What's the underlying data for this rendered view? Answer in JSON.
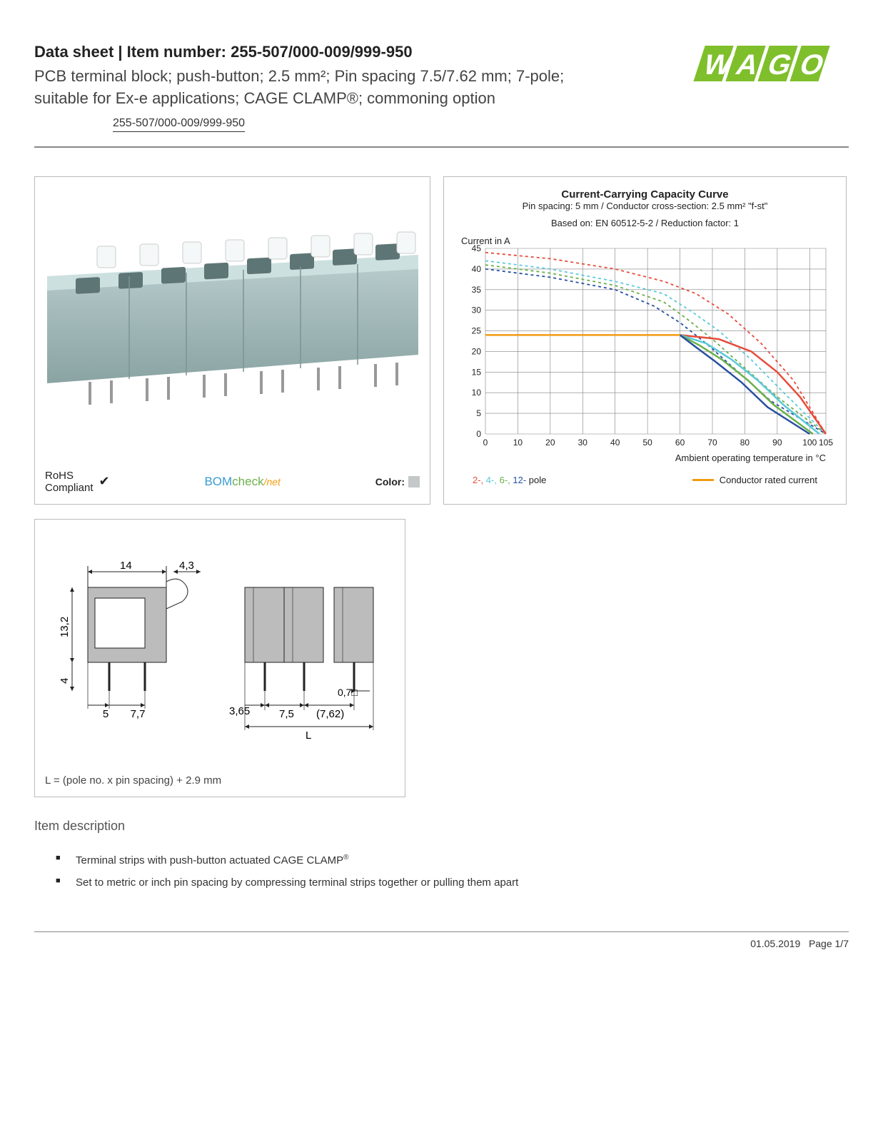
{
  "header": {
    "title_prefix": "Data sheet  |  Item number: ",
    "item_number": "255-507/000-009/999-950",
    "subtitle": "PCB terminal block; push-button; 2.5 mm²; Pin spacing 7.5/7.62 mm; 7-pole; suitable for Ex-e applications; CAGE CLAMP®; commoning option",
    "item_link": "255-507/000-009/999-950",
    "logo_text": "WAGO",
    "logo_color": "#7fbf2b"
  },
  "product_panel": {
    "rohs_line1": "RoHS",
    "rohs_line2": "Compliant",
    "bomcheck_text": "BOMcheck",
    "bomcheck_suffix": "/net",
    "color_label": "Color:",
    "swatch_color": "#c4c8c8",
    "terminal_body_color": "#a3b8b8",
    "terminal_shadow_color": "#7d9494"
  },
  "chart": {
    "title": "Current-Carrying Capacity Curve",
    "sub1": "Pin spacing: 5 mm / Conductor cross-section: 2.5 mm² \"f-st\"",
    "sub2": "Based on: EN 60512-5-2 / Reduction factor: 1",
    "y_axis_label": "Current in A",
    "x_axis_label": "Ambient operating temperature in °C",
    "ylim": [
      0,
      45
    ],
    "ytick_step": 5,
    "xlim": [
      0,
      105
    ],
    "xticks": [
      10,
      20,
      30,
      40,
      50,
      60,
      70,
      80,
      90,
      100,
      105
    ],
    "grid_color": "#808080",
    "background_color": "#ffffff",
    "series": [
      {
        "name": "2-pole",
        "color": "#e74c3c",
        "dashed": true,
        "points": [
          [
            0,
            44
          ],
          [
            20,
            42.5
          ],
          [
            40,
            40
          ],
          [
            55,
            37
          ],
          [
            65,
            34
          ],
          [
            75,
            29
          ],
          [
            85,
            22
          ],
          [
            95,
            13
          ],
          [
            105,
            0
          ]
        ]
      },
      {
        "name": "4-pole",
        "color": "#5bc9d9",
        "dashed": true,
        "points": [
          [
            0,
            42
          ],
          [
            20,
            40
          ],
          [
            40,
            37
          ],
          [
            55,
            34
          ],
          [
            63,
            30
          ],
          [
            72,
            25
          ],
          [
            82,
            18
          ],
          [
            92,
            10
          ],
          [
            105,
            0
          ]
        ]
      },
      {
        "name": "6-pole",
        "color": "#6ab04a",
        "dashed": true,
        "points": [
          [
            0,
            41
          ],
          [
            20,
            39
          ],
          [
            40,
            36
          ],
          [
            55,
            32
          ],
          [
            62,
            28
          ],
          [
            70,
            23
          ],
          [
            80,
            16
          ],
          [
            90,
            9
          ],
          [
            105,
            0
          ]
        ]
      },
      {
        "name": "12-pole",
        "color": "#2850a0",
        "dashed": true,
        "points": [
          [
            0,
            40
          ],
          [
            20,
            38
          ],
          [
            40,
            35
          ],
          [
            52,
            31
          ],
          [
            60,
            27
          ],
          [
            68,
            22
          ],
          [
            78,
            15
          ],
          [
            88,
            8
          ],
          [
            105,
            0
          ]
        ]
      },
      {
        "name": "2-solid",
        "color": "#e74c3c",
        "dashed": false,
        "points": [
          [
            60,
            24
          ],
          [
            72,
            23
          ],
          [
            82,
            20
          ],
          [
            90,
            15
          ],
          [
            97,
            9
          ],
          [
            105,
            0
          ]
        ]
      },
      {
        "name": "4-solid",
        "color": "#5bc9d9",
        "dashed": false,
        "points": [
          [
            60,
            24
          ],
          [
            68,
            22
          ],
          [
            76,
            18
          ],
          [
            84,
            13
          ],
          [
            92,
            7
          ],
          [
            103,
            0
          ]
        ]
      },
      {
        "name": "6-solid",
        "color": "#6ab04a",
        "dashed": false,
        "points": [
          [
            60,
            24
          ],
          [
            66,
            21.5
          ],
          [
            73,
            18
          ],
          [
            81,
            13
          ],
          [
            89,
            7
          ],
          [
            101,
            0
          ]
        ]
      },
      {
        "name": "12-solid",
        "color": "#2850a0",
        "dashed": false,
        "points": [
          [
            60,
            24
          ],
          [
            65,
            21
          ],
          [
            71,
            17.5
          ],
          [
            79,
            12.5
          ],
          [
            87,
            6.5
          ],
          [
            100,
            0
          ]
        ]
      },
      {
        "name": "rated",
        "color": "#f39c12",
        "dashed": false,
        "points": [
          [
            0,
            24
          ],
          [
            60,
            24
          ]
        ]
      }
    ],
    "legend_poles": [
      {
        "text": "2-",
        "color": "#e74c3c"
      },
      {
        "text": "4-",
        "color": "#5bc9d9"
      },
      {
        "text": "6-",
        "color": "#6ab04a"
      },
      {
        "text": "12-",
        "color": "#2850a0"
      }
    ],
    "legend_pole_suffix": " pole",
    "legend_rated_color": "#f39c12",
    "legend_rated_text": "Conductor rated current"
  },
  "dimensions": {
    "note": "L = (pole no. x pin spacing) + 2.9 mm",
    "labels": {
      "w14": "14",
      "w43": "4,3",
      "h132": "13,2",
      "h4": "4",
      "s5": "5",
      "s77": "7,7",
      "s365": "3,65",
      "s75": "7,5",
      "s762": "(7,62)",
      "s07": "0,7□",
      "L": "L"
    },
    "fill_color": "#bcbcbc",
    "line_color": "#222"
  },
  "description": {
    "heading": "Item description",
    "items": [
      "Terminal strips with push-button actuated CAGE CLAMP",
      "Set to metric or inch pin spacing by compressing terminal strips together or pulling them apart"
    ],
    "item0_sup": "®"
  },
  "footer": {
    "date": "01.05.2019",
    "page": "Page 1/7"
  }
}
